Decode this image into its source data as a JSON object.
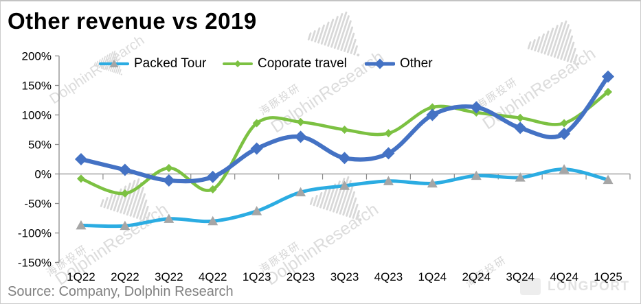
{
  "title": "Other revenue vs 2019",
  "source_note": "Source: Company, Dolphin Research",
  "watermark": {
    "brand_text": "DolphinResearch",
    "cn_text": "海豚投研",
    "longport_text": "LONGPORT"
  },
  "colors": {
    "packed_tour": "#2BACE2",
    "corporate_travel": "#7CC142",
    "other": "#4472C4",
    "marker_gray": "#A6A6A6",
    "axis": "#8C8C8C",
    "tick_label": "#000000"
  },
  "chart_data": {
    "type": "line",
    "title": "Other revenue vs 2019",
    "categories": [
      "1Q22",
      "2Q22",
      "3Q22",
      "4Q22",
      "1Q23",
      "2Q23",
      "3Q23",
      "4Q23",
      "1Q24",
      "2Q24",
      "3Q24",
      "4Q24",
      "1Q25"
    ],
    "series": [
      {
        "name": "Packed Tour",
        "color_key": "packed_tour",
        "marker": "triangle",
        "marker_color_key": "marker_gray",
        "values": [
          -87,
          -88,
          -76,
          -80,
          -63,
          -31,
          -20,
          -12,
          -16,
          -3,
          -6,
          8,
          -10
        ]
      },
      {
        "name": "Coporate travel",
        "color_key": "corporate_travel",
        "marker": "diamond",
        "marker_color_key": "corporate_travel",
        "values": [
          -8,
          -33,
          10,
          -26,
          86,
          88,
          75,
          69,
          113,
          104,
          95,
          86,
          139
        ]
      },
      {
        "name": "Other",
        "color_key": "other",
        "marker": "diamond",
        "marker_color_key": "other",
        "values": [
          25,
          7,
          -11,
          -5,
          43,
          63,
          27,
          35,
          100,
          113,
          78,
          68,
          165
        ]
      }
    ],
    "y_axis": {
      "min": -150,
      "max": 200,
      "step": 50,
      "tick_suffix": "%"
    },
    "x_axis_crosses_at": 0,
    "smooth": true,
    "gridlines": "none",
    "legend_position": "top"
  }
}
